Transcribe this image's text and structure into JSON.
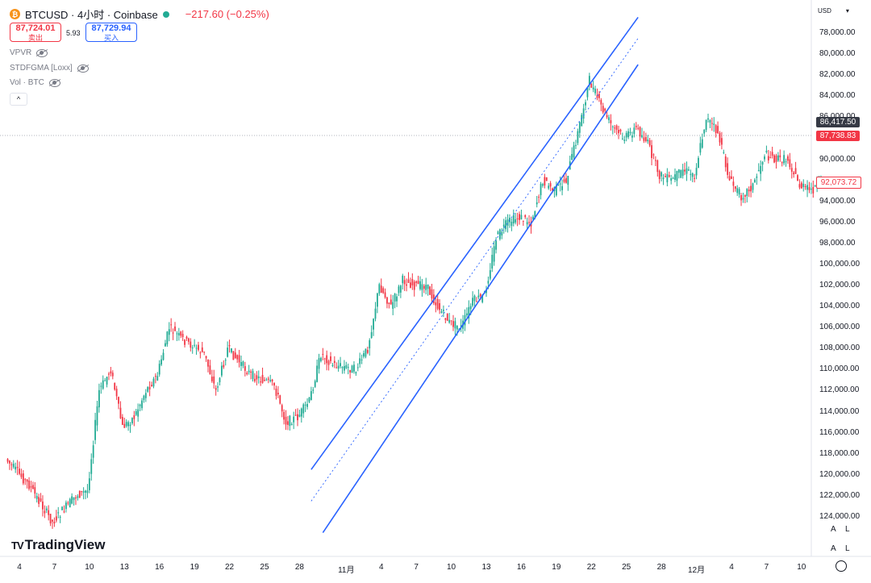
{
  "header": {
    "coin_glyph": "₿",
    "symbol": "BTCUSD · 4小时 · Coinbase",
    "change": "−217.60 (−0.25%)",
    "sell_price": "87,724.01",
    "sell_label": "卖出",
    "spread": "5.93",
    "buy_price": "87,729.94",
    "buy_label": "买入"
  },
  "indicators": [
    "VPVR",
    "STDFGMA [Loxx]",
    "Vol · BTC"
  ],
  "collapse_glyph": "^",
  "currency": {
    "label": "USD",
    "caret": "▾"
  },
  "price_axis": {
    "inverted": true,
    "labels": [
      "78,000.00",
      "80,000.00",
      "82,000.00",
      "84,000.00",
      "86,000.00",
      "88,000.00",
      "90,000.00",
      "92,000.00",
      "94,000.00",
      "96,000.00",
      "98,000.00",
      "100,000.00",
      "102,000.00",
      "104,000.00",
      "106,000.00",
      "108,000.00",
      "110,000.00",
      "112,000.00",
      "114,000.00",
      "116,000.00",
      "118,000.00",
      "120,000.00",
      "122,000.00",
      "124,000.00"
    ]
  },
  "tags": [
    {
      "value": "86,417.50",
      "bg": "#363a45",
      "fg": "#ffffff"
    },
    {
      "value": "87,738.83",
      "bg": "#f23645",
      "fg": "#ffffff"
    },
    {
      "value": "92,073.72",
      "bg": "#ffffff",
      "fg": "#f23645",
      "border": "#f23645"
    }
  ],
  "time_axis": [
    "4",
    "7",
    "10",
    "13",
    "16",
    "19",
    "22",
    "25",
    "28",
    "11月",
    "4",
    "7",
    "10",
    "13",
    "16",
    "19",
    "22",
    "25",
    "28",
    "12月",
    "4",
    "7",
    "10"
  ],
  "logo": {
    "mark": "TV",
    "text": "TradingView"
  },
  "scale_buttons": [
    "A",
    "L",
    "A",
    "L"
  ],
  "colors": {
    "up": "#22ab94",
    "down": "#f23645",
    "wick_up": "#089981",
    "channel": "#2962ff",
    "grid": "#f0f3fa"
  },
  "chart_data": {
    "type": "candlestick",
    "symbol": "BTCUSD",
    "interval": "4h",
    "y_axis_inverted": true,
    "ylim": [
      77000,
      126000
    ],
    "swing_points": [
      {
        "date": "Oct 3",
        "price": 118500
      },
      {
        "date": "Oct 5",
        "price": 121000
      },
      {
        "date": "Oct 7",
        "price": 124500
      },
      {
        "date": "Oct 9",
        "price": 122000
      },
      {
        "date": "Oct 10",
        "price": 121500
      },
      {
        "date": "Oct 11",
        "price": 112000
      },
      {
        "date": "Oct 12",
        "price": 110000
      },
      {
        "date": "Oct 13",
        "price": 115500
      },
      {
        "date": "Oct 14",
        "price": 114500
      },
      {
        "date": "Oct 15",
        "price": 112000
      },
      {
        "date": "Oct 16",
        "price": 110500
      },
      {
        "date": "Oct 17",
        "price": 106000
      },
      {
        "date": "Oct 18",
        "price": 107000
      },
      {
        "date": "Oct 20",
        "price": 108500
      },
      {
        "date": "Oct 21",
        "price": 112000
      },
      {
        "date": "Oct 22",
        "price": 108000
      },
      {
        "date": "Oct 24",
        "price": 110500
      },
      {
        "date": "Oct 26",
        "price": 111500
      },
      {
        "date": "Oct 27",
        "price": 115000
      },
      {
        "date": "Oct 28",
        "price": 114500
      },
      {
        "date": "Oct 29",
        "price": 113000
      },
      {
        "date": "Oct 30",
        "price": 108500
      },
      {
        "date": "Oct 31",
        "price": 109500
      },
      {
        "date": "Nov 2",
        "price": 110000
      },
      {
        "date": "Nov 3",
        "price": 108000
      },
      {
        "date": "Nov 4",
        "price": 102000
      },
      {
        "date": "Nov 5",
        "price": 104000
      },
      {
        "date": "Nov 6",
        "price": 101500
      },
      {
        "date": "Nov 7",
        "price": 102000
      },
      {
        "date": "Nov 8",
        "price": 102000
      },
      {
        "date": "Nov 9",
        "price": 104000
      },
      {
        "date": "Nov 10",
        "price": 105500
      },
      {
        "date": "Nov 11",
        "price": 106000
      },
      {
        "date": "Nov 12",
        "price": 103500
      },
      {
        "date": "Nov 13",
        "price": 103000
      },
      {
        "date": "Nov 14",
        "price": 97500
      },
      {
        "date": "Nov 15",
        "price": 96000
      },
      {
        "date": "Nov 16",
        "price": 95500
      },
      {
        "date": "Nov 17",
        "price": 96000
      },
      {
        "date": "Nov 18",
        "price": 92000
      },
      {
        "date": "Nov 19",
        "price": 93000
      },
      {
        "date": "Nov 20",
        "price": 92000
      },
      {
        "date": "Nov 21",
        "price": 87500
      },
      {
        "date": "Nov 22",
        "price": 82500
      },
      {
        "date": "Nov 23",
        "price": 85000
      },
      {
        "date": "Nov 24",
        "price": 87000
      },
      {
        "date": "Nov 25",
        "price": 88000
      },
      {
        "date": "Nov 26",
        "price": 87000
      },
      {
        "date": "Nov 27",
        "price": 88500
      },
      {
        "date": "Nov 28",
        "price": 91500
      },
      {
        "date": "Nov 29",
        "price": 92000
      },
      {
        "date": "Nov 30",
        "price": 91000
      },
      {
        "date": "Dec 1",
        "price": 91500
      },
      {
        "date": "Dec 2",
        "price": 86000
      },
      {
        "date": "Dec 3",
        "price": 87500
      },
      {
        "date": "Dec 4",
        "price": 92000
      },
      {
        "date": "Dec 5",
        "price": 93500
      },
      {
        "date": "Dec 6",
        "price": 92500
      },
      {
        "date": "Dec 7",
        "price": 89500
      },
      {
        "date": "Dec 8",
        "price": 90000
      },
      {
        "date": "Dec 9",
        "price": 90000
      },
      {
        "date": "Dec 10",
        "price": 92500
      },
      {
        "date": "Dec 11",
        "price": 93000
      },
      {
        "date": "Dec 12",
        "price": 92000
      }
    ],
    "last_price": 92073.72,
    "channel": {
      "upper": [
        {
          "date": "Oct 29",
          "price": 119500
        },
        {
          "date": "Nov 26",
          "price": 76500
        }
      ],
      "middle": [
        {
          "date": "Oct 29",
          "price": 122500
        },
        {
          "date": "Nov 26",
          "price": 78500
        }
      ],
      "lower": [
        {
          "date": "Oct 30",
          "price": 125500
        },
        {
          "date": "Nov 26",
          "price": 81000
        }
      ]
    },
    "dotted_price_line": 87738.83
  }
}
